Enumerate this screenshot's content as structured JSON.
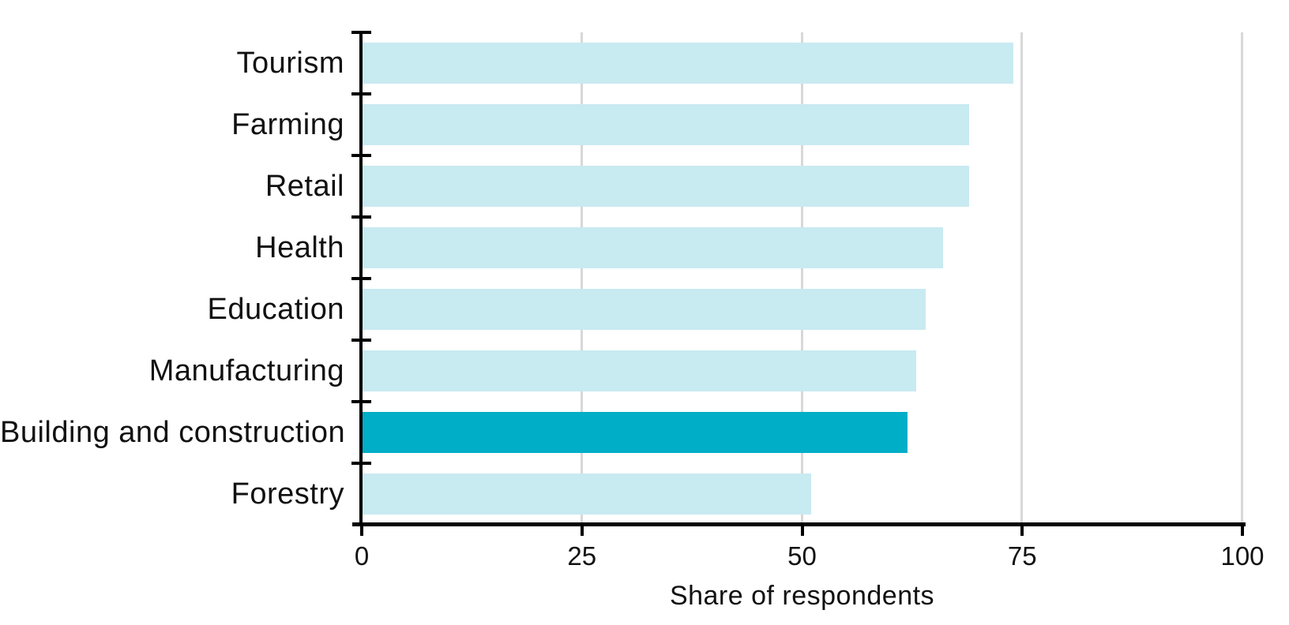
{
  "chart_data": {
    "type": "bar",
    "orientation": "horizontal",
    "title": "",
    "xlabel": "Share of respondents",
    "ylabel": "",
    "categories": [
      "Tourism",
      "Farming",
      "Retail",
      "Health",
      "Education",
      "Manufacturing",
      "Building and construction",
      "Forestry"
    ],
    "values": [
      74,
      69,
      69,
      66,
      64,
      63,
      62,
      51
    ],
    "highlight_category": "Building and construction",
    "highlight_index": 6,
    "xlim": [
      0,
      100
    ],
    "xticks": [
      0,
      25,
      50,
      75,
      100
    ],
    "grid": "vertical-gridlines-on",
    "legend": "none",
    "colors": {
      "bar": "#c8eaf1",
      "highlight_bar": "#00aec7",
      "gridline": "#d8d8d8",
      "axis": "#000000",
      "text": "#111111",
      "background": "#ffffff"
    }
  }
}
